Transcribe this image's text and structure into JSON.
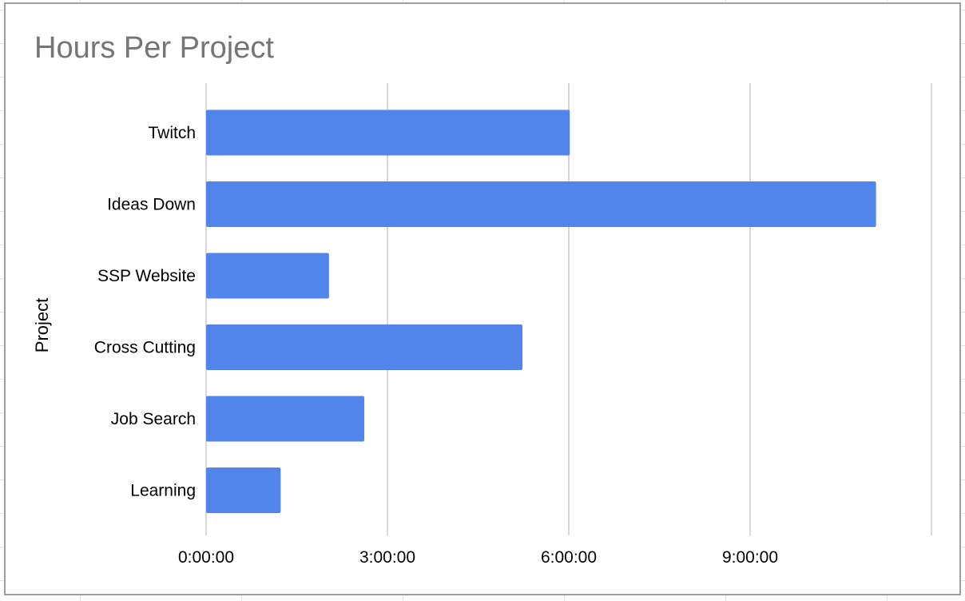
{
  "chart_data": {
    "type": "bar",
    "orientation": "horizontal",
    "title": "Hours Per Project",
    "xlabel": "",
    "ylabel": "Project",
    "categories": [
      "Twitch",
      "Ideas Down",
      "SSP Website",
      "Cross Cutting",
      "Job Search",
      "Learning"
    ],
    "values": [
      "6:01:00",
      "11:05:00",
      "2:02:00",
      "5:14:00",
      "2:37:00",
      "1:14:00"
    ],
    "xlim": [
      "0:00:00",
      "12:00:00"
    ],
    "xticks": [
      "0:00:00",
      "3:00:00",
      "6:00:00",
      "9:00:00"
    ],
    "grid": true,
    "legend": "none",
    "colors": {
      "bar": "#5185ec",
      "grid": "#cccccc",
      "title": "#757575"
    }
  }
}
